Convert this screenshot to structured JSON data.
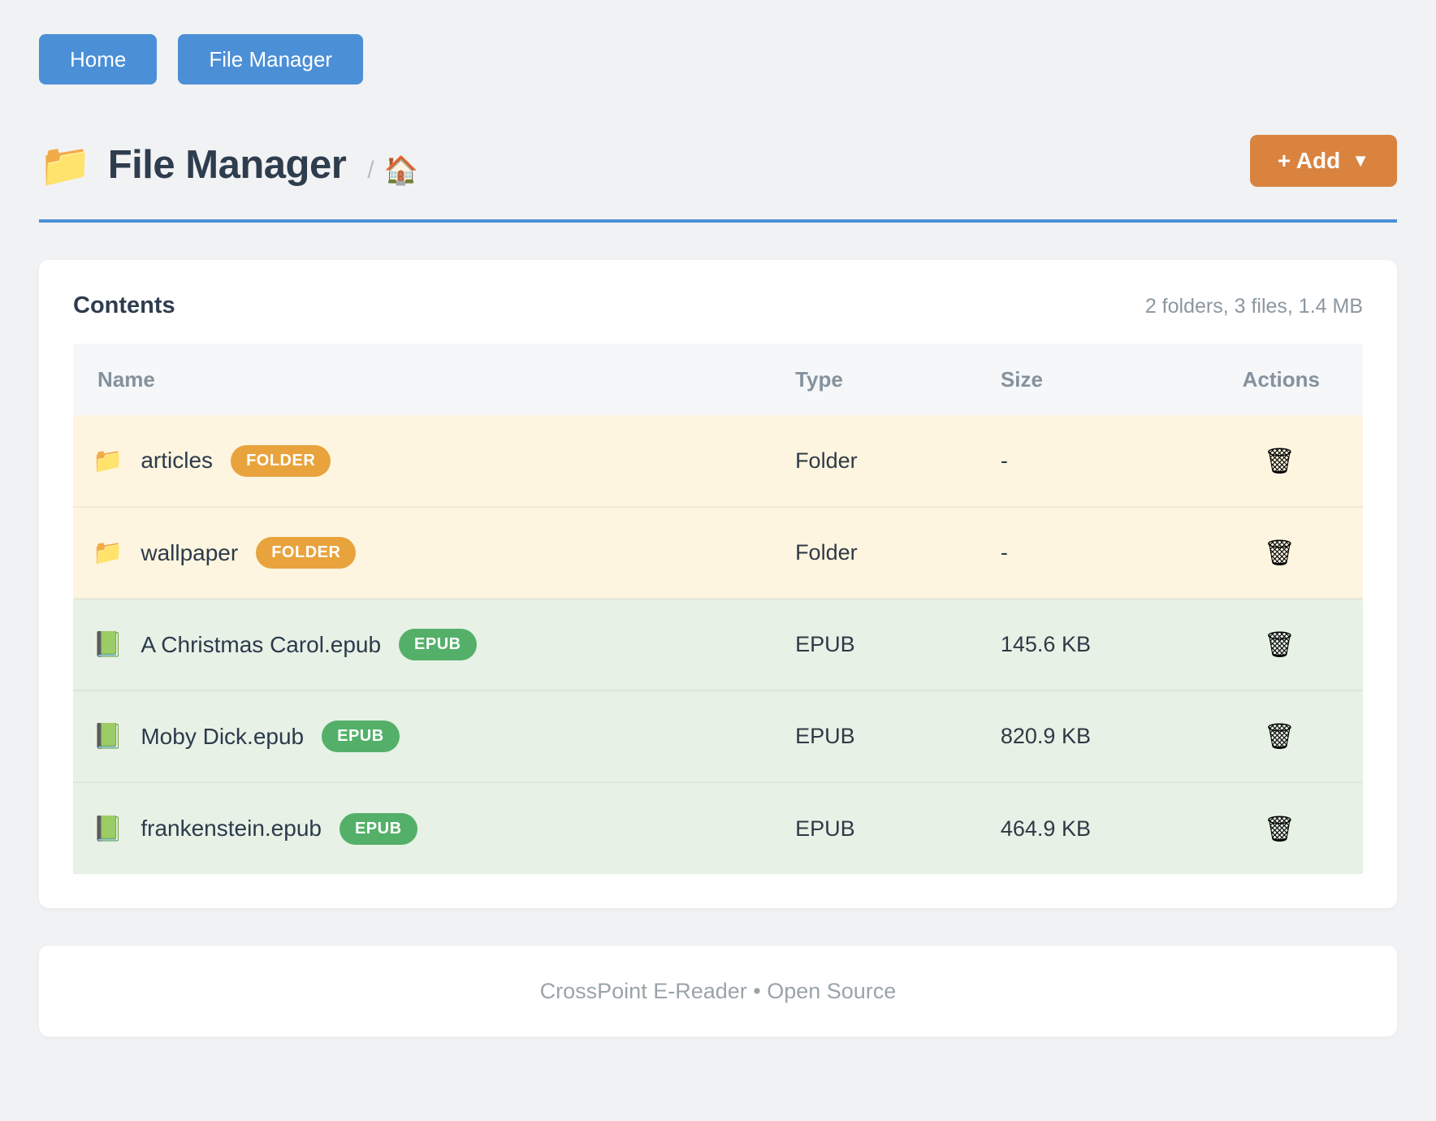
{
  "nav": {
    "buttons": [
      {
        "label": "Home"
      },
      {
        "label": "File Manager"
      }
    ]
  },
  "header": {
    "title_icon": "📁",
    "title": "File Manager",
    "breadcrumb_separator": "/",
    "breadcrumb_home_icon": "🏠",
    "add_button": {
      "label": "+ Add",
      "caret": "▼"
    }
  },
  "contents_card": {
    "title": "Contents",
    "summary": "2 folders, 3 files, 1.4 MB",
    "table": {
      "columns": [
        "Name",
        "Type",
        "Size",
        "Actions"
      ],
      "delete_icon": "🗑",
      "rows": [
        {
          "icon": "📁",
          "name": "articles",
          "badge": "FOLDER",
          "type": "Folder",
          "size": "-"
        },
        {
          "icon": "📁",
          "name": "wallpaper",
          "badge": "FOLDER",
          "type": "Folder",
          "size": "-"
        },
        {
          "icon": "📗",
          "name": "A Christmas Carol.epub",
          "badge": "EPUB",
          "type": "EPUB",
          "size": "145.6 KB"
        },
        {
          "icon": "📗",
          "name": "Moby Dick.epub",
          "badge": "EPUB",
          "type": "EPUB",
          "size": "820.9 KB"
        },
        {
          "icon": "📗",
          "name": "frankenstein.epub",
          "badge": "EPUB",
          "type": "EPUB",
          "size": "464.9 KB"
        }
      ]
    }
  },
  "footer": {
    "text": "CrossPoint E-Reader • Open Source"
  },
  "colors": {
    "page_background": "#f1f2f4",
    "nav_button_blue": "#4b8fd7",
    "title_divider_blue": "#4a90d9",
    "add_button_orange": "#d9833f",
    "folder_badge_orange": "#e8a33d",
    "epub_badge_green": "#54b069",
    "folder_row_background": "#fdf5df",
    "epub_row_background": "#e7f1e6",
    "header_row_background": "#f5f7f9"
  }
}
